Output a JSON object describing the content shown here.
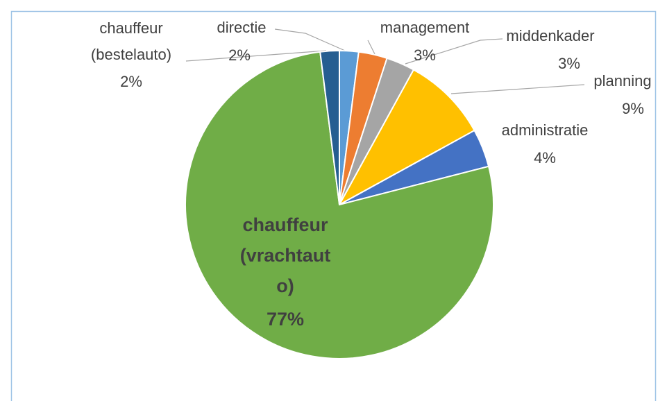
{
  "chart_data": {
    "type": "pie",
    "categories": [
      "directie",
      "management",
      "middenkader",
      "planning",
      "administratie",
      "chauffeur (vrachtauto)",
      "chauffeur (bestelauto)"
    ],
    "values": [
      2,
      3,
      3,
      9,
      4,
      77,
      2
    ],
    "value_labels": [
      "2%",
      "3%",
      "3%",
      "9%",
      "4%",
      "77%",
      "2%"
    ],
    "colors": [
      "#5b9bd5",
      "#ed7d31",
      "#a5a5a5",
      "#ffc000",
      "#4472c4",
      "#70ad47",
      "#255e91"
    ]
  }
}
